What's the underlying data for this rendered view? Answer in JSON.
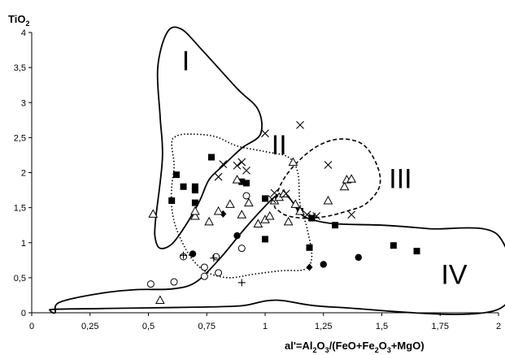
{
  "chart_data": {
    "type": "scatter",
    "title": "",
    "ylabel": {
      "base": "TiO",
      "sub": "2",
      "tail": ""
    },
    "xlabel": {
      "parts": [
        {
          "t": "al'=Al",
          "s": false
        },
        {
          "t": "2",
          "s": true
        },
        {
          "t": "O",
          "s": false
        },
        {
          "t": "3",
          "s": true
        },
        {
          "t": "/(FeO+Fe",
          "s": false
        },
        {
          "t": "2",
          "s": true
        },
        {
          "t": "O",
          "s": false
        },
        {
          "t": "3",
          "s": true
        },
        {
          "t": "+MgO)",
          "s": false
        }
      ]
    },
    "xlim": [
      0,
      2
    ],
    "ylim": [
      0,
      4
    ],
    "grid": false,
    "x_ticks": [
      {
        "value": 0,
        "label": "0"
      },
      {
        "value": 0.25,
        "label": "0,25"
      },
      {
        "value": 0.5,
        "label": "0,5"
      },
      {
        "value": 0.75,
        "label": "0,75"
      },
      {
        "value": 1,
        "label": "1"
      },
      {
        "value": 1.25,
        "label": "1,25"
      },
      {
        "value": 1.5,
        "label": "1,5"
      },
      {
        "value": 1.75,
        "label": "1,75"
      },
      {
        "value": 2,
        "label": "2"
      }
    ],
    "y_ticks": [
      {
        "value": 0,
        "label": "0"
      },
      {
        "value": 0.5,
        "label": "0,5"
      },
      {
        "value": 1,
        "label": "1"
      },
      {
        "value": 1.5,
        "label": "1,5"
      },
      {
        "value": 2,
        "label": "2"
      },
      {
        "value": 2.5,
        "label": "2,5"
      },
      {
        "value": 3,
        "label": "3"
      },
      {
        "value": 3.5,
        "label": "3,5"
      },
      {
        "value": 4,
        "label": "4"
      }
    ],
    "regions": [
      {
        "label": "I",
        "style": "solid",
        "label_at": [
          0.66,
          3.6
        ],
        "outline": [
          [
            0.53,
            1.3
          ],
          [
            0.56,
            2.2
          ],
          [
            0.55,
            2.8
          ],
          [
            0.54,
            3.5
          ],
          [
            0.58,
            4.0
          ],
          [
            0.64,
            4.05
          ],
          [
            0.73,
            3.75
          ],
          [
            0.88,
            3.2
          ],
          [
            0.97,
            2.9
          ],
          [
            0.98,
            2.55
          ],
          [
            0.9,
            2.35
          ],
          [
            0.82,
            2.1
          ],
          [
            0.76,
            1.9
          ],
          [
            0.72,
            1.6
          ],
          [
            0.66,
            1.25
          ],
          [
            0.6,
            0.98
          ],
          [
            0.55,
            0.92
          ],
          [
            0.53,
            1.05
          ]
        ]
      },
      {
        "label": "II",
        "style": "dotted",
        "label_at": [
          1.06,
          2.4
        ],
        "outline": [
          [
            0.6,
            2.4
          ],
          [
            0.61,
            2.1
          ],
          [
            0.6,
            1.8
          ],
          [
            0.6,
            1.5
          ],
          [
            0.62,
            1.2
          ],
          [
            0.67,
            0.85
          ],
          [
            0.72,
            0.65
          ],
          [
            0.77,
            0.55
          ],
          [
            0.85,
            0.5
          ],
          [
            0.95,
            0.55
          ],
          [
            1.07,
            0.6
          ],
          [
            1.17,
            0.62
          ],
          [
            1.2,
            0.8
          ],
          [
            1.18,
            1.2
          ],
          [
            1.15,
            1.55
          ],
          [
            1.14,
            2.0
          ],
          [
            1.1,
            2.22
          ],
          [
            1.0,
            2.3
          ],
          [
            0.88,
            2.38
          ],
          [
            0.78,
            2.52
          ],
          [
            0.66,
            2.55
          ],
          [
            0.61,
            2.5
          ]
        ]
      },
      {
        "label": "III",
        "style": "dashed",
        "label_at": [
          1.58,
          1.92
        ],
        "outline": [
          [
            1.04,
            1.55
          ],
          [
            1.07,
            1.85
          ],
          [
            1.13,
            2.12
          ],
          [
            1.22,
            2.37
          ],
          [
            1.32,
            2.48
          ],
          [
            1.42,
            2.4
          ],
          [
            1.48,
            2.1
          ],
          [
            1.49,
            1.8
          ],
          [
            1.43,
            1.55
          ],
          [
            1.35,
            1.45
          ],
          [
            1.27,
            1.38
          ],
          [
            1.18,
            1.35
          ],
          [
            1.1,
            1.38
          ],
          [
            1.06,
            1.45
          ]
        ]
      },
      {
        "label": "IV",
        "style": "solid",
        "label_at": [
          1.81,
          0.55
        ],
        "outline": [
          [
            0.1,
            0.0
          ],
          [
            0.12,
            0.15
          ],
          [
            0.3,
            0.28
          ],
          [
            0.45,
            0.33
          ],
          [
            0.6,
            0.34
          ],
          [
            0.7,
            0.43
          ],
          [
            0.8,
            0.75
          ],
          [
            0.9,
            1.15
          ],
          [
            0.98,
            1.45
          ],
          [
            1.05,
            1.67
          ],
          [
            1.1,
            1.65
          ],
          [
            1.15,
            1.42
          ],
          [
            1.2,
            1.33
          ],
          [
            1.3,
            1.27
          ],
          [
            1.5,
            1.25
          ],
          [
            1.7,
            1.2
          ],
          [
            2.0,
            1.1
          ],
          [
            2.0,
            0.05
          ],
          [
            1.3,
            0.08
          ],
          [
            1.05,
            0.18
          ],
          [
            0.9,
            0.1
          ],
          [
            0.7,
            0.08
          ],
          [
            0.5,
            0.07
          ],
          [
            0.3,
            0.06
          ],
          [
            0.1,
            0.05
          ],
          [
            0.08,
            0.03
          ]
        ]
      }
    ],
    "series": [
      {
        "marker": "filled-square",
        "points": [
          [
            0.6,
            1.6
          ],
          [
            0.62,
            1.97
          ],
          [
            0.65,
            1.8
          ],
          [
            0.7,
            1.57
          ],
          [
            0.7,
            1.75
          ],
          [
            0.7,
            1.8
          ],
          [
            0.77,
            2.22
          ],
          [
            0.9,
            1.87
          ],
          [
            0.92,
            1.85
          ],
          [
            1.0,
            1.63
          ],
          [
            1.0,
            1.05
          ],
          [
            1.19,
            0.93
          ],
          [
            1.2,
            1.35
          ],
          [
            1.3,
            1.25
          ],
          [
            1.55,
            0.96
          ],
          [
            1.65,
            0.88
          ],
          [
            1.15,
            1.45
          ]
        ]
      },
      {
        "marker": "filled-circle",
        "points": [
          [
            0.69,
            0.84
          ],
          [
            0.88,
            1.1
          ],
          [
            1.25,
            0.69
          ],
          [
            1.4,
            0.79
          ]
        ]
      },
      {
        "marker": "filled-diamond",
        "points": [
          [
            0.82,
            1.41
          ],
          [
            1.19,
            0.65
          ]
        ]
      },
      {
        "marker": "open-circle",
        "points": [
          [
            0.51,
            0.41
          ],
          [
            0.61,
            0.44
          ],
          [
            0.65,
            0.8
          ],
          [
            0.74,
            0.52
          ],
          [
            0.74,
            0.65
          ],
          [
            0.79,
            0.8
          ],
          [
            0.8,
            0.57
          ],
          [
            0.9,
            0.92
          ],
          [
            0.92,
            1.67
          ]
        ]
      },
      {
        "marker": "open-triangle",
        "points": [
          [
            0.52,
            1.41
          ],
          [
            0.55,
            0.18
          ],
          [
            0.7,
            1.38
          ],
          [
            0.7,
            1.45
          ],
          [
            0.76,
            1.3
          ],
          [
            0.8,
            1.45
          ],
          [
            0.85,
            1.55
          ],
          [
            0.88,
            1.9
          ],
          [
            0.9,
            1.4
          ],
          [
            0.93,
            1.57
          ],
          [
            0.97,
            1.27
          ],
          [
            1.0,
            1.33
          ],
          [
            1.02,
            1.38
          ],
          [
            1.04,
            1.6
          ],
          [
            1.06,
            1.65
          ],
          [
            1.08,
            1.7
          ],
          [
            1.1,
            1.3
          ],
          [
            1.13,
            1.55
          ],
          [
            1.12,
            2.15
          ],
          [
            1.27,
            1.6
          ],
          [
            1.34,
            1.8
          ],
          [
            1.35,
            1.9
          ],
          [
            1.37,
            1.91
          ],
          [
            1.15,
            1.45
          ]
        ]
      },
      {
        "marker": "cross",
        "points": [
          [
            0.8,
            1.94
          ],
          [
            0.82,
            2.12
          ],
          [
            0.88,
            2.1
          ],
          [
            0.9,
            2.15
          ],
          [
            0.92,
            2.03
          ],
          [
            1.0,
            2.56
          ],
          [
            1.03,
            1.62
          ],
          [
            1.04,
            1.71
          ],
          [
            1.09,
            1.7
          ],
          [
            1.15,
            2.68
          ],
          [
            1.2,
            1.37
          ],
          [
            1.18,
            1.4
          ],
          [
            1.27,
            2.11
          ],
          [
            1.37,
            1.4
          ],
          [
            1.22,
            1.38
          ]
        ]
      },
      {
        "marker": "plus",
        "points": [
          [
            0.65,
            0.82
          ],
          [
            0.78,
            0.78
          ],
          [
            0.9,
            0.43
          ]
        ]
      }
    ]
  }
}
